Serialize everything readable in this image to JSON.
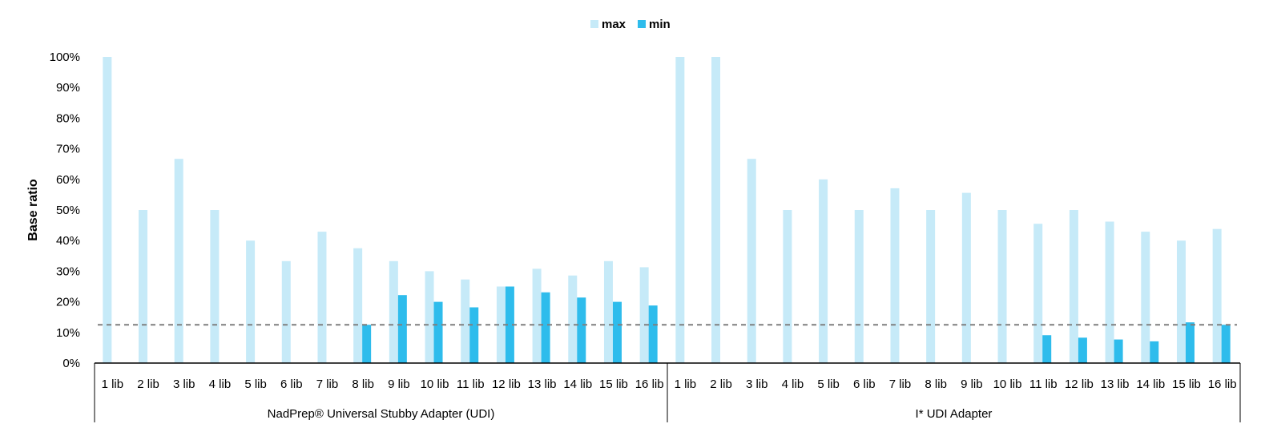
{
  "chart_data": {
    "type": "bar",
    "title": "",
    "ylabel": "Base ratio",
    "xlabel": "",
    "ylim": [
      0,
      100
    ],
    "y_ticks": [
      "0%",
      "10%",
      "20%",
      "30%",
      "40%",
      "50%",
      "60%",
      "70%",
      "80%",
      "90%",
      "100%"
    ],
    "y_tick_values": [
      0,
      10,
      20,
      30,
      40,
      50,
      60,
      70,
      80,
      90,
      100
    ],
    "legend": {
      "placement": "top-center",
      "entries": [
        "max",
        "min"
      ]
    },
    "colors": {
      "max": "#c6eaf8",
      "min": "#2ebcec",
      "reference": "#7f7f7f"
    },
    "reference_line": 12.5,
    "groups": [
      {
        "name": "NadPrep® Universal Stubby Adapter (UDI)",
        "categories": [
          "1 lib",
          "2 lib",
          "3 lib",
          "4 lib",
          "5 lib",
          "6 lib",
          "7 lib",
          "8 lib",
          "9 lib",
          "10 lib",
          "11 lib",
          "12 lib",
          "13 lib",
          "14 lib",
          "15 lib",
          "16 lib"
        ],
        "series": [
          {
            "name": "max",
            "values": [
              100,
              50,
              66.7,
              50,
              40,
              33.3,
              42.9,
              37.5,
              33.3,
              30,
              27.3,
              25,
              30.8,
              28.6,
              33.3,
              31.3
            ]
          },
          {
            "name": "min",
            "values": [
              0,
              0,
              0,
              0,
              0,
              0,
              0,
              12.5,
              22.2,
              20,
              18.2,
              25,
              23.1,
              21.4,
              20,
              18.8
            ]
          }
        ]
      },
      {
        "name": "I* UDI Adapter",
        "categories": [
          "1 lib",
          "2 lib",
          "3 lib",
          "4 lib",
          "5 lib",
          "6 lib",
          "7 lib",
          "8 lib",
          "9 lib",
          "10 lib",
          "11 lib",
          "12 lib",
          "13 lib",
          "14 lib",
          "15 lib",
          "16 lib"
        ],
        "series": [
          {
            "name": "max",
            "values": [
              100,
              100,
              66.7,
              50,
              60,
              50,
              57.1,
              50,
              55.6,
              50,
              45.5,
              50,
              46.2,
              42.9,
              40,
              43.8
            ]
          },
          {
            "name": "min",
            "values": [
              0,
              0,
              0,
              0,
              0,
              0,
              0,
              0,
              0,
              0,
              9.1,
              8.3,
              7.7,
              7.1,
              13.3,
              12.5
            ]
          }
        ]
      }
    ]
  }
}
